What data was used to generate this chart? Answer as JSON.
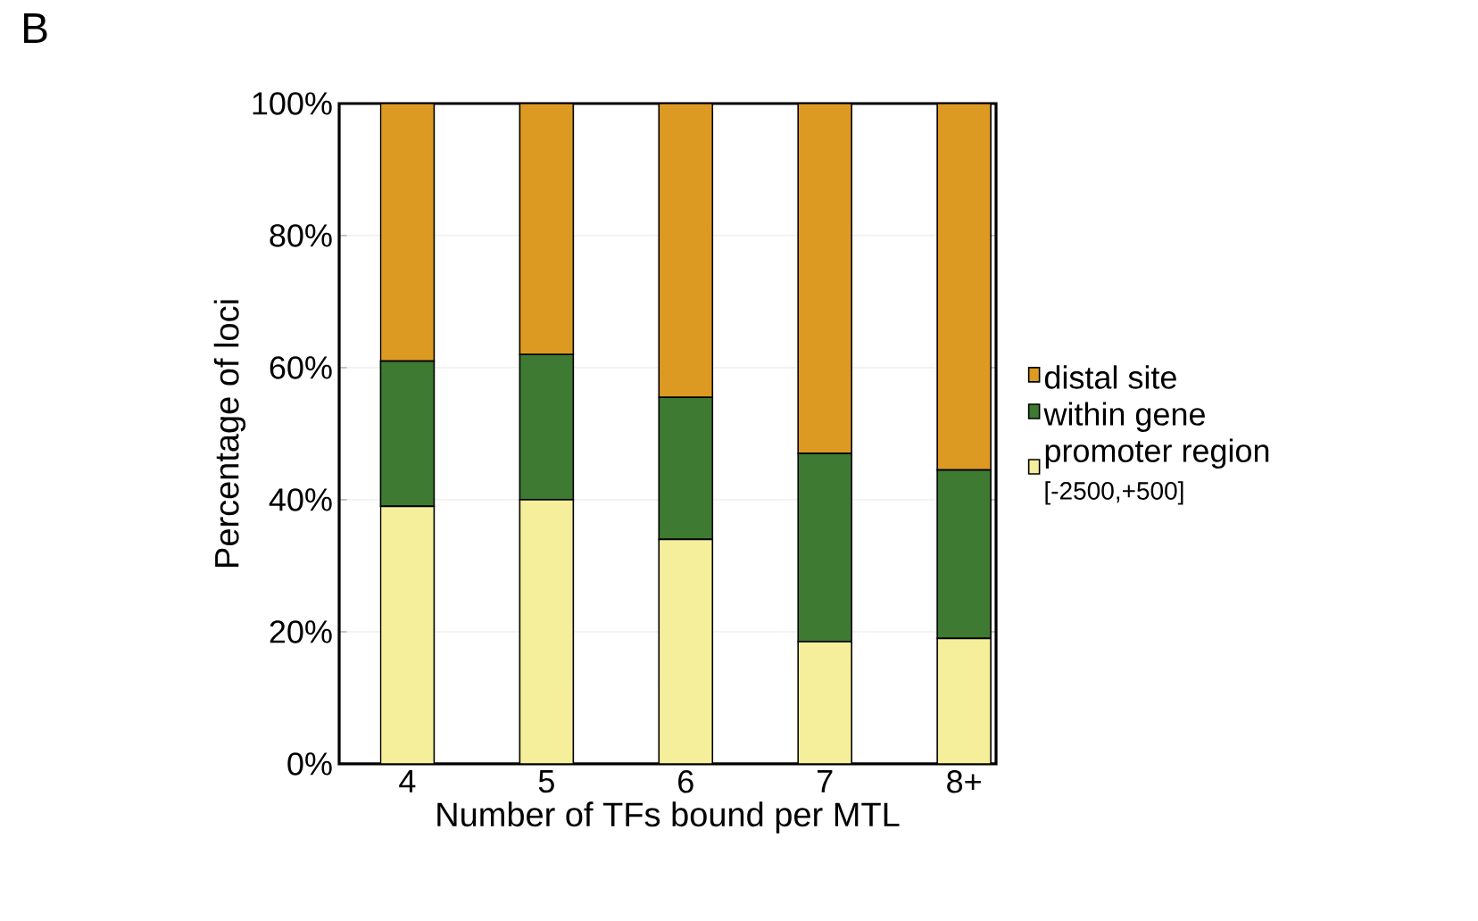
{
  "chart_data": {
    "type": "bar",
    "stacked": true,
    "title": "B",
    "xlabel": "Number of TFs bound per MTL",
    "ylabel": "Percentage of loci",
    "categories": [
      "4",
      "5",
      "6",
      "7",
      "8+"
    ],
    "series": [
      {
        "name": "promoter region",
        "color": "#f5ef9c",
        "values": [
          39,
          40,
          34,
          18.5,
          19
        ]
      },
      {
        "name": "within gene",
        "color": "#3e7a32",
        "values": [
          22,
          22,
          21.5,
          28.5,
          25.5
        ]
      },
      {
        "name": "distal site",
        "color": "#dd9a22",
        "values": [
          39,
          38,
          44.5,
          53,
          55.5
        ]
      }
    ],
    "annotations": [
      "[-2500,+500]"
    ],
    "ylim": [
      0,
      100
    ],
    "yticks": [
      {
        "value": 0,
        "label": "0%"
      },
      {
        "value": 20,
        "label": "20%"
      },
      {
        "value": 40,
        "label": "40%"
      },
      {
        "value": 60,
        "label": "60%"
      },
      {
        "value": 80,
        "label": "80%"
      },
      {
        "value": 100,
        "label": "100%"
      }
    ],
    "grid": "y",
    "legend": "right"
  }
}
